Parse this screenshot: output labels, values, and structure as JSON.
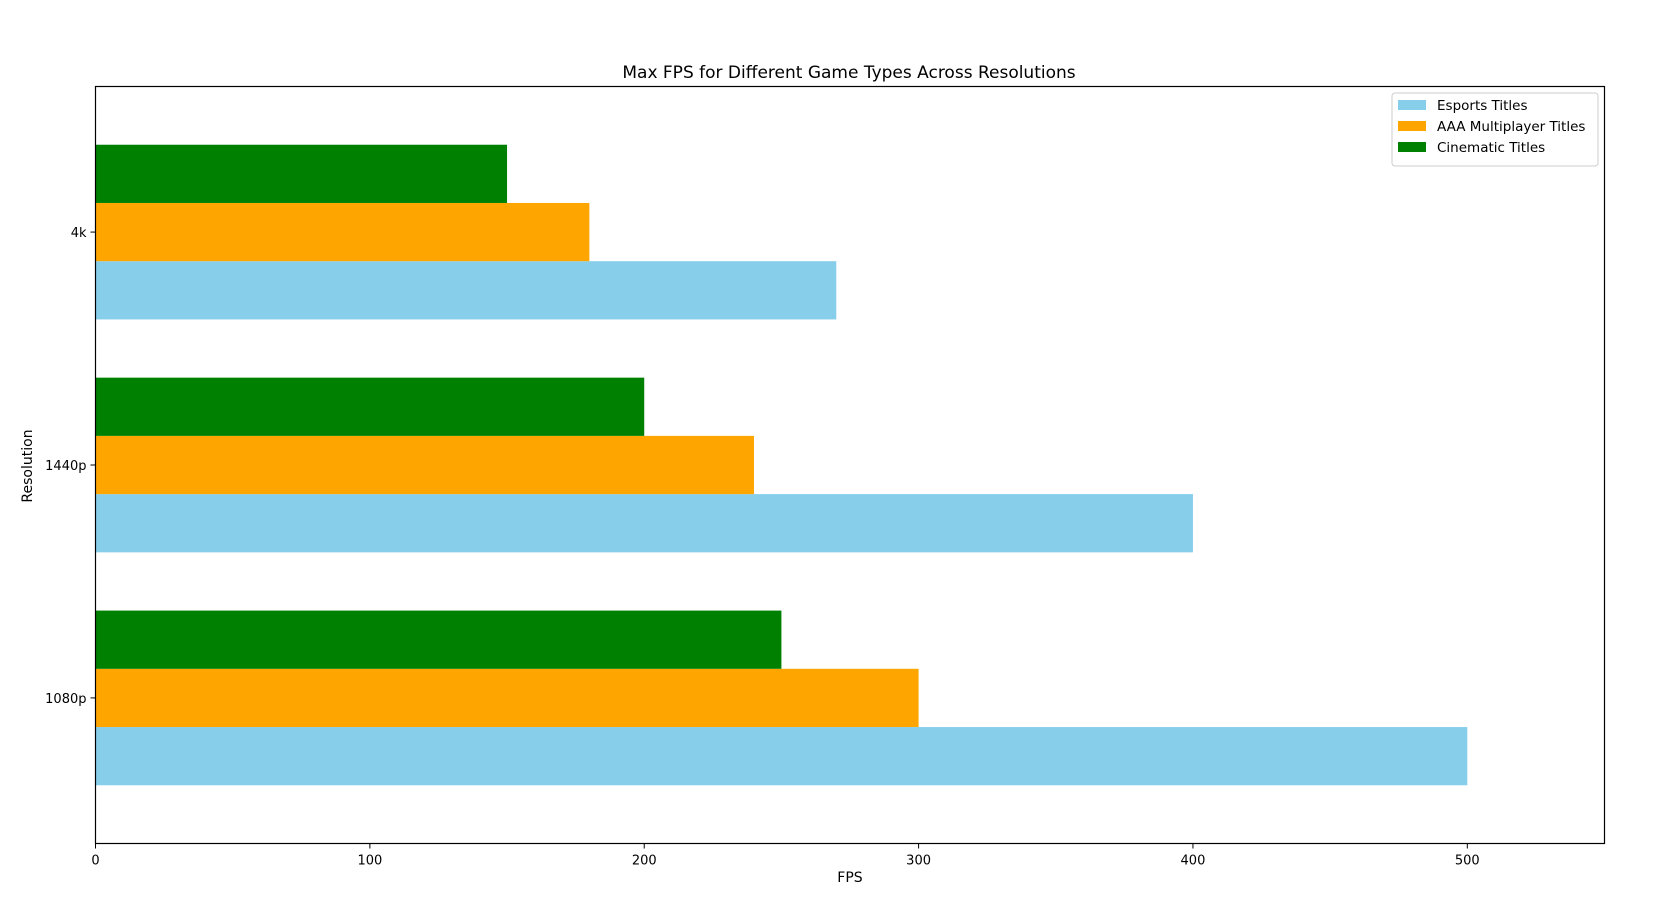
{
  "chart_data": {
    "type": "bar",
    "orientation": "horizontal",
    "title": "Max FPS for Different Game Types Across Resolutions",
    "xlabel": "FPS",
    "ylabel": "Resolution",
    "categories": [
      "1080p",
      "1440p",
      "4k"
    ],
    "series": [
      {
        "name": "Esports Titles",
        "color": "#87ceeb",
        "values": [
          500,
          400,
          270
        ]
      },
      {
        "name": "AAA Multiplayer Titles",
        "color": "#ffa500",
        "values": [
          300,
          240,
          180
        ]
      },
      {
        "name": "Cinematic Titles",
        "color": "#008000",
        "values": [
          250,
          200,
          150
        ]
      }
    ],
    "xlim": [
      0,
      550
    ],
    "xticks": [
      0,
      100,
      200,
      300,
      400,
      500
    ],
    "grid": false,
    "legend_position": "top-right"
  }
}
